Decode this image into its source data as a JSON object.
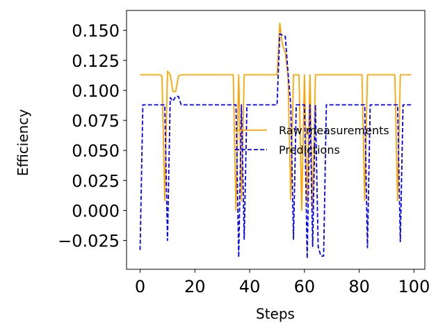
{
  "chart_data": {
    "type": "line",
    "title": "",
    "xlabel": "Steps",
    "ylabel": "Efficiency",
    "xlim": [
      -4.95,
      103.95
    ],
    "ylim": [
      -0.049,
      0.1666
    ],
    "xticks": [
      0,
      20,
      40,
      60,
      80,
      100
    ],
    "xtick_labels": [
      "0",
      "20",
      "40",
      "60",
      "80",
      "100"
    ],
    "yticks": [
      -0.025,
      0.0,
      0.025,
      0.05,
      0.075,
      0.1,
      0.125,
      0.15
    ],
    "ytick_labels": [
      "−0.025",
      "0.000",
      "0.025",
      "0.050",
      "0.075",
      "0.100",
      "0.125",
      "0.150"
    ],
    "grid": false,
    "legend_position": "center-right",
    "series": [
      {
        "name": "Raw measurements",
        "color": "#ffa500",
        "style": "solid",
        "x": [
          0,
          1,
          2,
          3,
          4,
          5,
          6,
          7,
          8,
          9,
          10,
          11,
          12,
          13,
          14,
          15,
          16,
          17,
          18,
          19,
          20,
          21,
          22,
          23,
          24,
          25,
          26,
          27,
          28,
          29,
          30,
          31,
          32,
          33,
          34,
          35,
          36,
          37,
          38,
          39,
          40,
          41,
          42,
          43,
          44,
          45,
          46,
          47,
          48,
          49,
          50,
          51,
          52,
          53,
          54,
          55,
          56,
          57,
          58,
          59,
          60,
          61,
          62,
          63,
          64,
          65,
          66,
          67,
          68,
          69,
          70,
          71,
          72,
          73,
          74,
          75,
          76,
          77,
          78,
          79,
          80,
          81,
          82,
          83,
          84,
          85,
          86,
          87,
          88,
          89,
          90,
          91,
          92,
          93,
          94,
          95,
          96,
          97,
          98,
          99
        ],
        "y": [
          0.113,
          0.113,
          0.113,
          0.113,
          0.113,
          0.113,
          0.113,
          0.113,
          0.112,
          0.008,
          0.116,
          0.113,
          0.099,
          0.099,
          0.112,
          0.113,
          0.113,
          0.113,
          0.113,
          0.113,
          0.113,
          0.113,
          0.113,
          0.113,
          0.113,
          0.113,
          0.113,
          0.113,
          0.113,
          0.113,
          0.113,
          0.113,
          0.113,
          0.113,
          0.113,
          0.0,
          0.113,
          0.008,
          0.113,
          0.113,
          0.113,
          0.113,
          0.113,
          0.113,
          0.113,
          0.113,
          0.113,
          0.113,
          0.113,
          0.113,
          0.113,
          0.156,
          0.138,
          0.131,
          0.112,
          0.009,
          0.113,
          0.113,
          0.113,
          0.0,
          0.113,
          0.006,
          0.113,
          0.0,
          0.113,
          0.113,
          0.113,
          0.113,
          0.113,
          0.113,
          0.113,
          0.113,
          0.113,
          0.113,
          0.113,
          0.113,
          0.113,
          0.113,
          0.113,
          0.113,
          0.113,
          0.113,
          0.008,
          0.113,
          0.113,
          0.113,
          0.113,
          0.113,
          0.113,
          0.113,
          0.113,
          0.113,
          0.113,
          0.113,
          0.008,
          0.113,
          0.113,
          0.113,
          0.113,
          0.113
        ]
      },
      {
        "name": "Predictions",
        "color": "#0000ff",
        "style": "dashed",
        "x": [
          0,
          1,
          2,
          3,
          4,
          5,
          6,
          7,
          8,
          9,
          10,
          11,
          12,
          13,
          14,
          15,
          16,
          17,
          18,
          19,
          20,
          21,
          22,
          23,
          24,
          25,
          26,
          27,
          28,
          29,
          30,
          31,
          32,
          33,
          34,
          35,
          36,
          37,
          38,
          39,
          40,
          41,
          42,
          43,
          44,
          45,
          46,
          47,
          48,
          49,
          50,
          51,
          52,
          53,
          54,
          55,
          56,
          57,
          58,
          59,
          60,
          61,
          62,
          63,
          64,
          65,
          66,
          67,
          68,
          69,
          70,
          71,
          72,
          73,
          74,
          75,
          76,
          77,
          78,
          79,
          80,
          81,
          82,
          83,
          84,
          85,
          86,
          87,
          88,
          89,
          90,
          91,
          92,
          93,
          94,
          95,
          96,
          97,
          98,
          99
        ],
        "y": [
          -0.033,
          0.088,
          0.088,
          0.088,
          0.088,
          0.088,
          0.088,
          0.088,
          0.088,
          0.088,
          -0.025,
          0.094,
          0.091,
          0.095,
          0.095,
          0.088,
          0.088,
          0.088,
          0.088,
          0.088,
          0.088,
          0.088,
          0.088,
          0.088,
          0.088,
          0.088,
          0.088,
          0.088,
          0.088,
          0.088,
          0.088,
          0.088,
          0.088,
          0.088,
          0.088,
          0.088,
          -0.039,
          0.088,
          -0.024,
          0.088,
          0.088,
          0.088,
          0.088,
          0.088,
          0.088,
          0.088,
          0.088,
          0.088,
          0.088,
          0.088,
          0.088,
          0.147,
          0.146,
          0.145,
          0.115,
          0.088,
          -0.024,
          0.088,
          0.088,
          0.088,
          0.088,
          -0.04,
          0.088,
          -0.03,
          0.088,
          -0.03,
          -0.038,
          -0.038,
          0.088,
          0.088,
          0.088,
          0.088,
          0.088,
          0.088,
          0.088,
          0.088,
          0.088,
          0.088,
          0.088,
          0.088,
          0.088,
          0.088,
          0.088,
          -0.031,
          0.088,
          0.088,
          0.088,
          0.088,
          0.088,
          0.088,
          0.088,
          0.088,
          0.088,
          0.088,
          0.088,
          -0.026,
          0.088,
          0.088,
          0.088,
          0.088
        ]
      }
    ]
  }
}
